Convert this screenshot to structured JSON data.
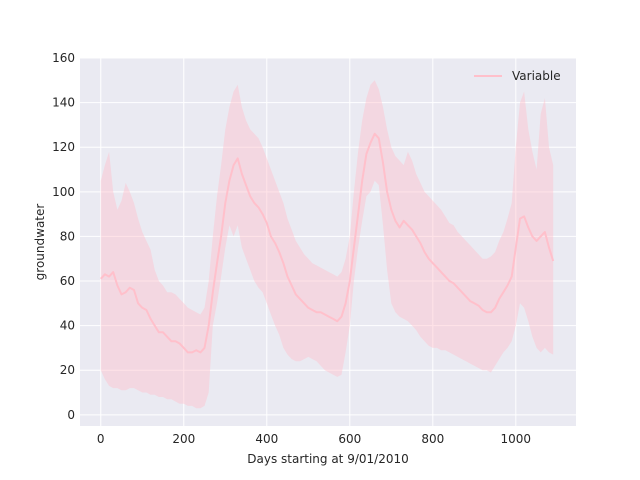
{
  "chart_data": {
    "type": "line",
    "xlabel": "Days starting at 9/01/2010",
    "ylabel": "groundwater",
    "xlim": [
      -50,
      1145
    ],
    "ylim": [
      -5,
      160
    ],
    "xticks": [
      0,
      200,
      400,
      600,
      800,
      1000
    ],
    "yticks": [
      0,
      20,
      40,
      60,
      80,
      100,
      120,
      140,
      160
    ],
    "grid": true,
    "legend_position": "top-right",
    "background_color": "#eaeaf2",
    "series": [
      {
        "name": "Variable",
        "color": "#ffc0cb",
        "band_color": "#ffc0cb",
        "x": [
          0,
          10,
          20,
          30,
          40,
          50,
          60,
          70,
          80,
          90,
          100,
          110,
          120,
          130,
          140,
          150,
          160,
          170,
          180,
          190,
          200,
          210,
          220,
          230,
          240,
          250,
          260,
          270,
          280,
          290,
          300,
          310,
          320,
          330,
          340,
          350,
          360,
          370,
          380,
          390,
          400,
          410,
          420,
          430,
          440,
          450,
          460,
          470,
          480,
          490,
          500,
          510,
          520,
          530,
          540,
          550,
          560,
          570,
          580,
          590,
          600,
          610,
          620,
          630,
          640,
          650,
          660,
          670,
          680,
          690,
          700,
          710,
          720,
          730,
          740,
          750,
          760,
          770,
          780,
          790,
          800,
          810,
          820,
          830,
          840,
          850,
          860,
          870,
          880,
          890,
          900,
          910,
          920,
          930,
          940,
          950,
          960,
          970,
          980,
          990,
          1000,
          1010,
          1020,
          1030,
          1040,
          1050,
          1060,
          1070,
          1080,
          1090
        ],
        "values": [
          61,
          63,
          62,
          64,
          58,
          54,
          55,
          57,
          56,
          50,
          48,
          47,
          43,
          40,
          37,
          37,
          35,
          33,
          33,
          32,
          30,
          28,
          28,
          29,
          28,
          30,
          40,
          55,
          68,
          80,
          95,
          105,
          112,
          115,
          108,
          103,
          98,
          95,
          93,
          90,
          86,
          80,
          77,
          73,
          68,
          62,
          58,
          54,
          52,
          50,
          48,
          47,
          46,
          46,
          45,
          44,
          43,
          42,
          44,
          50,
          60,
          75,
          90,
          105,
          117,
          122,
          126,
          124,
          113,
          100,
          92,
          87,
          84,
          87,
          85,
          83,
          80,
          77,
          73,
          70,
          68,
          66,
          64,
          62,
          60,
          59,
          57,
          55,
          53,
          51,
          50,
          49,
          47,
          46,
          46,
          48,
          52,
          55,
          58,
          62,
          75,
          88,
          89,
          84,
          80,
          78,
          80,
          82,
          75,
          69
        ],
        "lower": [
          20,
          16,
          13,
          12,
          12,
          11,
          11,
          12,
          12,
          11,
          10,
          10,
          9,
          9,
          8,
          8,
          7,
          7,
          6,
          5,
          5,
          4,
          4,
          3,
          3,
          4,
          10,
          40,
          50,
          62,
          75,
          85,
          80,
          85,
          75,
          70,
          65,
          60,
          57,
          55,
          50,
          45,
          40,
          36,
          30,
          27,
          25,
          24,
          24,
          25,
          26,
          25,
          24,
          22,
          20,
          19,
          18,
          17,
          18,
          28,
          40,
          60,
          75,
          87,
          98,
          100,
          105,
          103,
          85,
          65,
          50,
          46,
          44,
          43,
          42,
          40,
          38,
          35,
          33,
          31,
          30,
          30,
          29,
          29,
          28,
          27,
          26,
          25,
          24,
          23,
          22,
          21,
          20,
          20,
          19,
          22,
          25,
          28,
          30,
          33,
          40,
          50,
          48,
          42,
          35,
          30,
          28,
          30,
          28,
          27
        ],
        "upper": [
          105,
          112,
          118,
          100,
          92,
          96,
          104,
          100,
          95,
          88,
          82,
          78,
          74,
          65,
          60,
          58,
          55,
          55,
          54,
          52,
          50,
          48,
          47,
          46,
          45,
          48,
          60,
          80,
          98,
          112,
          128,
          138,
          145,
          148,
          138,
          132,
          128,
          126,
          124,
          120,
          115,
          110,
          105,
          100,
          95,
          88,
          83,
          78,
          75,
          72,
          70,
          68,
          67,
          66,
          65,
          64,
          63,
          62,
          64,
          70,
          80,
          100,
          118,
          132,
          142,
          148,
          150,
          146,
          138,
          128,
          120,
          116,
          114,
          112,
          118,
          114,
          108,
          104,
          100,
          98,
          96,
          94,
          92,
          89,
          86,
          85,
          82,
          80,
          78,
          76,
          74,
          72,
          70,
          70,
          71,
          73,
          78,
          82,
          88,
          95,
          120,
          140,
          145,
          128,
          118,
          110,
          135,
          142,
          120,
          112
        ]
      }
    ]
  }
}
